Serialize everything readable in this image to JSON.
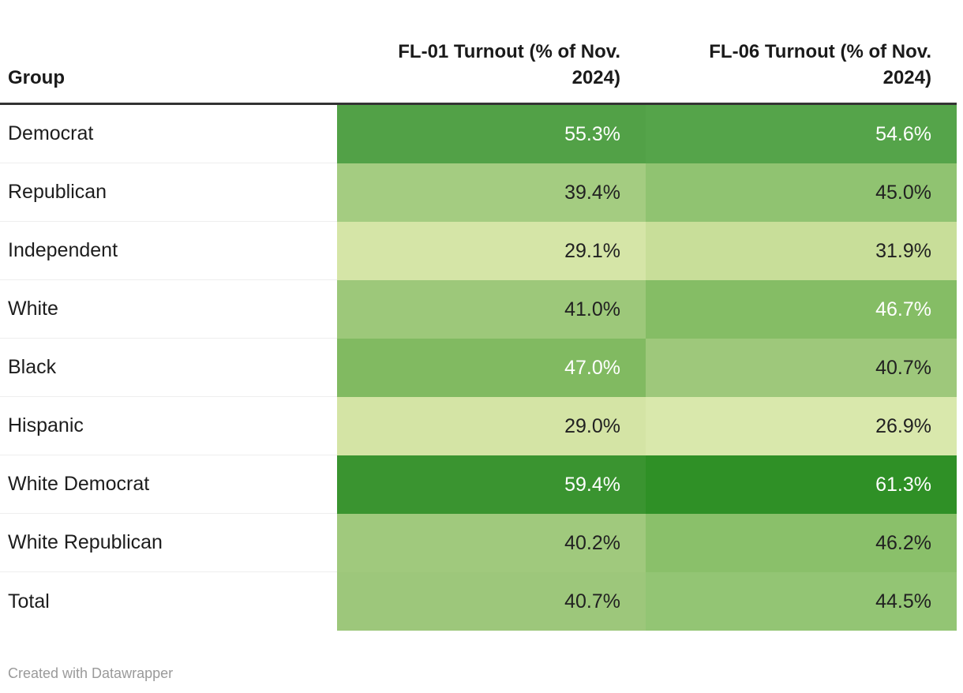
{
  "table": {
    "columns": [
      {
        "id": "group",
        "label": "Group"
      },
      {
        "id": "fl01",
        "label": "FL-01 Turnout (% of Nov. 2024)"
      },
      {
        "id": "fl06",
        "label": "FL-06 Turnout (% of Nov. 2024)"
      }
    ],
    "rows": [
      {
        "group": "Democrat",
        "fl01": {
          "value": "55.3%",
          "bg": "#52a147",
          "text": "#ffffff"
        },
        "fl06": {
          "value": "54.6%",
          "bg": "#55a44a",
          "text": "#ffffff"
        }
      },
      {
        "group": "Republican",
        "fl01": {
          "value": "39.4%",
          "bg": "#a4cc81",
          "text": "#212121"
        },
        "fl06": {
          "value": "45.0%",
          "bg": "#90c371",
          "text": "#212121"
        }
      },
      {
        "group": "Independent",
        "fl01": {
          "value": "29.1%",
          "bg": "#d5e5a7",
          "text": "#212121"
        },
        "fl06": {
          "value": "31.9%",
          "bg": "#c8de99",
          "text": "#212121"
        }
      },
      {
        "group": "White",
        "fl01": {
          "value": "41.0%",
          "bg": "#9dc87a",
          "text": "#212121"
        },
        "fl06": {
          "value": "46.7%",
          "bg": "#85bd65",
          "text": "#ffffff"
        }
      },
      {
        "group": "Black",
        "fl01": {
          "value": "47.0%",
          "bg": "#81ba61",
          "text": "#ffffff"
        },
        "fl06": {
          "value": "40.7%",
          "bg": "#9ec87b",
          "text": "#212121"
        }
      },
      {
        "group": "Hispanic",
        "fl01": {
          "value": "29.0%",
          "bg": "#d4e4a5",
          "text": "#212121"
        },
        "fl06": {
          "value": "26.9%",
          "bg": "#d9e8ac",
          "text": "#212121"
        }
      },
      {
        "group": "White Democrat",
        "fl01": {
          "value": "59.4%",
          "bg": "#3a9430",
          "text": "#ffffff"
        },
        "fl06": {
          "value": "61.3%",
          "bg": "#2f9026",
          "text": "#ffffff"
        }
      },
      {
        "group": "White Republican",
        "fl01": {
          "value": "40.2%",
          "bg": "#a0c97d",
          "text": "#212121"
        },
        "fl06": {
          "value": "46.2%",
          "bg": "#8ac06a",
          "text": "#212121"
        }
      },
      {
        "group": "Total",
        "fl01": {
          "value": "40.7%",
          "bg": "#9dc77b",
          "text": "#212121"
        },
        "fl06": {
          "value": "44.5%",
          "bg": "#93c574",
          "text": "#212121"
        }
      }
    ]
  },
  "footer": {
    "attribution": "Created with Datawrapper"
  },
  "colors": {
    "header_border": "#333333",
    "row_divider": "#eeeeee",
    "dark_text": "#212121",
    "light_text": "#ffffff",
    "footer_text": "#9a9a9a"
  },
  "chart_data": {
    "type": "table",
    "title": "",
    "categories": [
      "Democrat",
      "Republican",
      "Independent",
      "White",
      "Black",
      "Hispanic",
      "White Democrat",
      "White Republican",
      "Total"
    ],
    "series": [
      {
        "name": "FL-01 Turnout (% of Nov. 2024)",
        "values": [
          55.3,
          39.4,
          29.1,
          41.0,
          47.0,
          29.0,
          59.4,
          40.2,
          40.7
        ]
      },
      {
        "name": "FL-06 Turnout (% of Nov. 2024)",
        "values": [
          54.6,
          45.0,
          31.9,
          46.7,
          40.7,
          26.9,
          61.3,
          46.2,
          44.5
        ]
      }
    ],
    "value_range": [
      26.9,
      61.3
    ],
    "heatmap": true,
    "palette": "sequential-green (light = low, dark = high)",
    "legend": "none",
    "notes": "Created with Datawrapper"
  }
}
